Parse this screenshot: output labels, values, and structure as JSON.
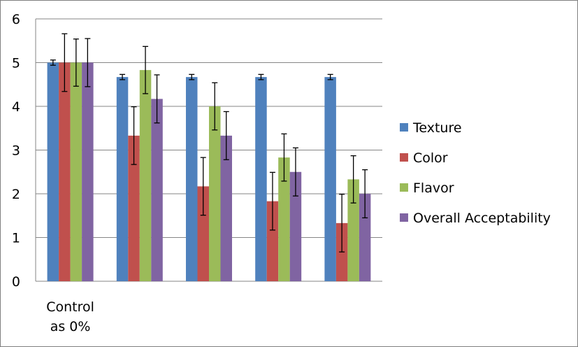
{
  "chart_data": {
    "type": "bar",
    "categories": [
      "Control\nas 0%",
      "",
      "",
      "",
      ""
    ],
    "ylim": [
      0,
      6
    ],
    "yticks": [
      0,
      1,
      2,
      3,
      4,
      5,
      6
    ],
    "grid": true,
    "legend_position": "right",
    "series": [
      {
        "name": "Texture",
        "color": "#4f81bd",
        "values": [
          5.0,
          4.67,
          4.67,
          4.67,
          4.67
        ],
        "errors": [
          0.06,
          0.06,
          0.06,
          0.06,
          0.06
        ]
      },
      {
        "name": "Color",
        "color": "#c0504d",
        "values": [
          5.0,
          3.33,
          2.17,
          1.83,
          1.33
        ],
        "errors": [
          0.66,
          0.66,
          0.66,
          0.66,
          0.66
        ]
      },
      {
        "name": "Flavor",
        "color": "#9bbb59",
        "values": [
          5.0,
          4.83,
          4.0,
          2.83,
          2.33
        ],
        "errors": [
          0.54,
          0.54,
          0.54,
          0.54,
          0.54
        ]
      },
      {
        "name": "Overall Acceptability",
        "color": "#8064a2",
        "values": [
          5.0,
          4.17,
          3.33,
          2.5,
          2.0
        ],
        "errors": [
          0.55,
          0.55,
          0.55,
          0.55,
          0.55
        ]
      }
    ]
  }
}
